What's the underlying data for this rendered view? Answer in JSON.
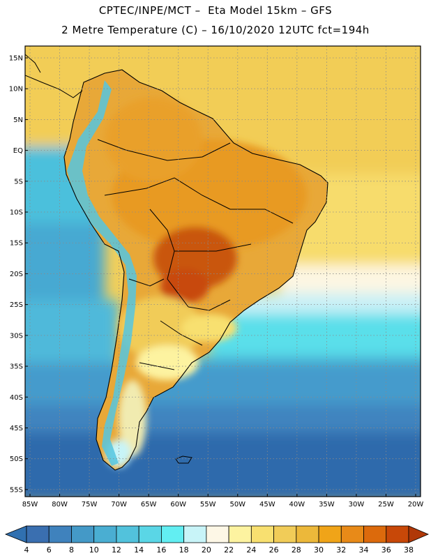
{
  "header": {
    "line1": "CPTEC/INPE/MCT –  Eta Model 15km – GFS",
    "line2": "2 Metre Temperature (C) – 16/10/2020 12UTC fct=194h"
  },
  "map": {
    "lat_labels": [
      "15N",
      "10N",
      "5N",
      "EQ",
      "5S",
      "10S",
      "15S",
      "20S",
      "25S",
      "30S",
      "35S",
      "40S",
      "45S",
      "50S",
      "55S"
    ],
    "lon_labels": [
      "85W",
      "80W",
      "75W",
      "70W",
      "65W",
      "60W",
      "55W",
      "50W",
      "45W",
      "40W",
      "35W",
      "30W",
      "25W",
      "20W"
    ],
    "lat_range": [
      15,
      -55
    ],
    "lon_range": [
      -85,
      -20
    ],
    "unit": "C"
  },
  "colorbar": {
    "labels": [
      "4",
      "6",
      "8",
      "10",
      "12",
      "14",
      "16",
      "18",
      "20",
      "22",
      "24",
      "26",
      "28",
      "30",
      "32",
      "34",
      "36",
      "38"
    ],
    "colors": [
      "#3a6fb0",
      "#3f82bd",
      "#4499c7",
      "#4aaed2",
      "#52c2dc",
      "#5ad6e6",
      "#62eef2",
      "#c8f4f8",
      "#fdf7e6",
      "#fdf3a0",
      "#f8e070",
      "#f1cc58",
      "#ecb83a",
      "#f0a418",
      "#e88a18",
      "#dc6a0c",
      "#c84808"
    ],
    "left_cap_color": "#3070b0",
    "right_cap_color": "#b03808"
  }
}
